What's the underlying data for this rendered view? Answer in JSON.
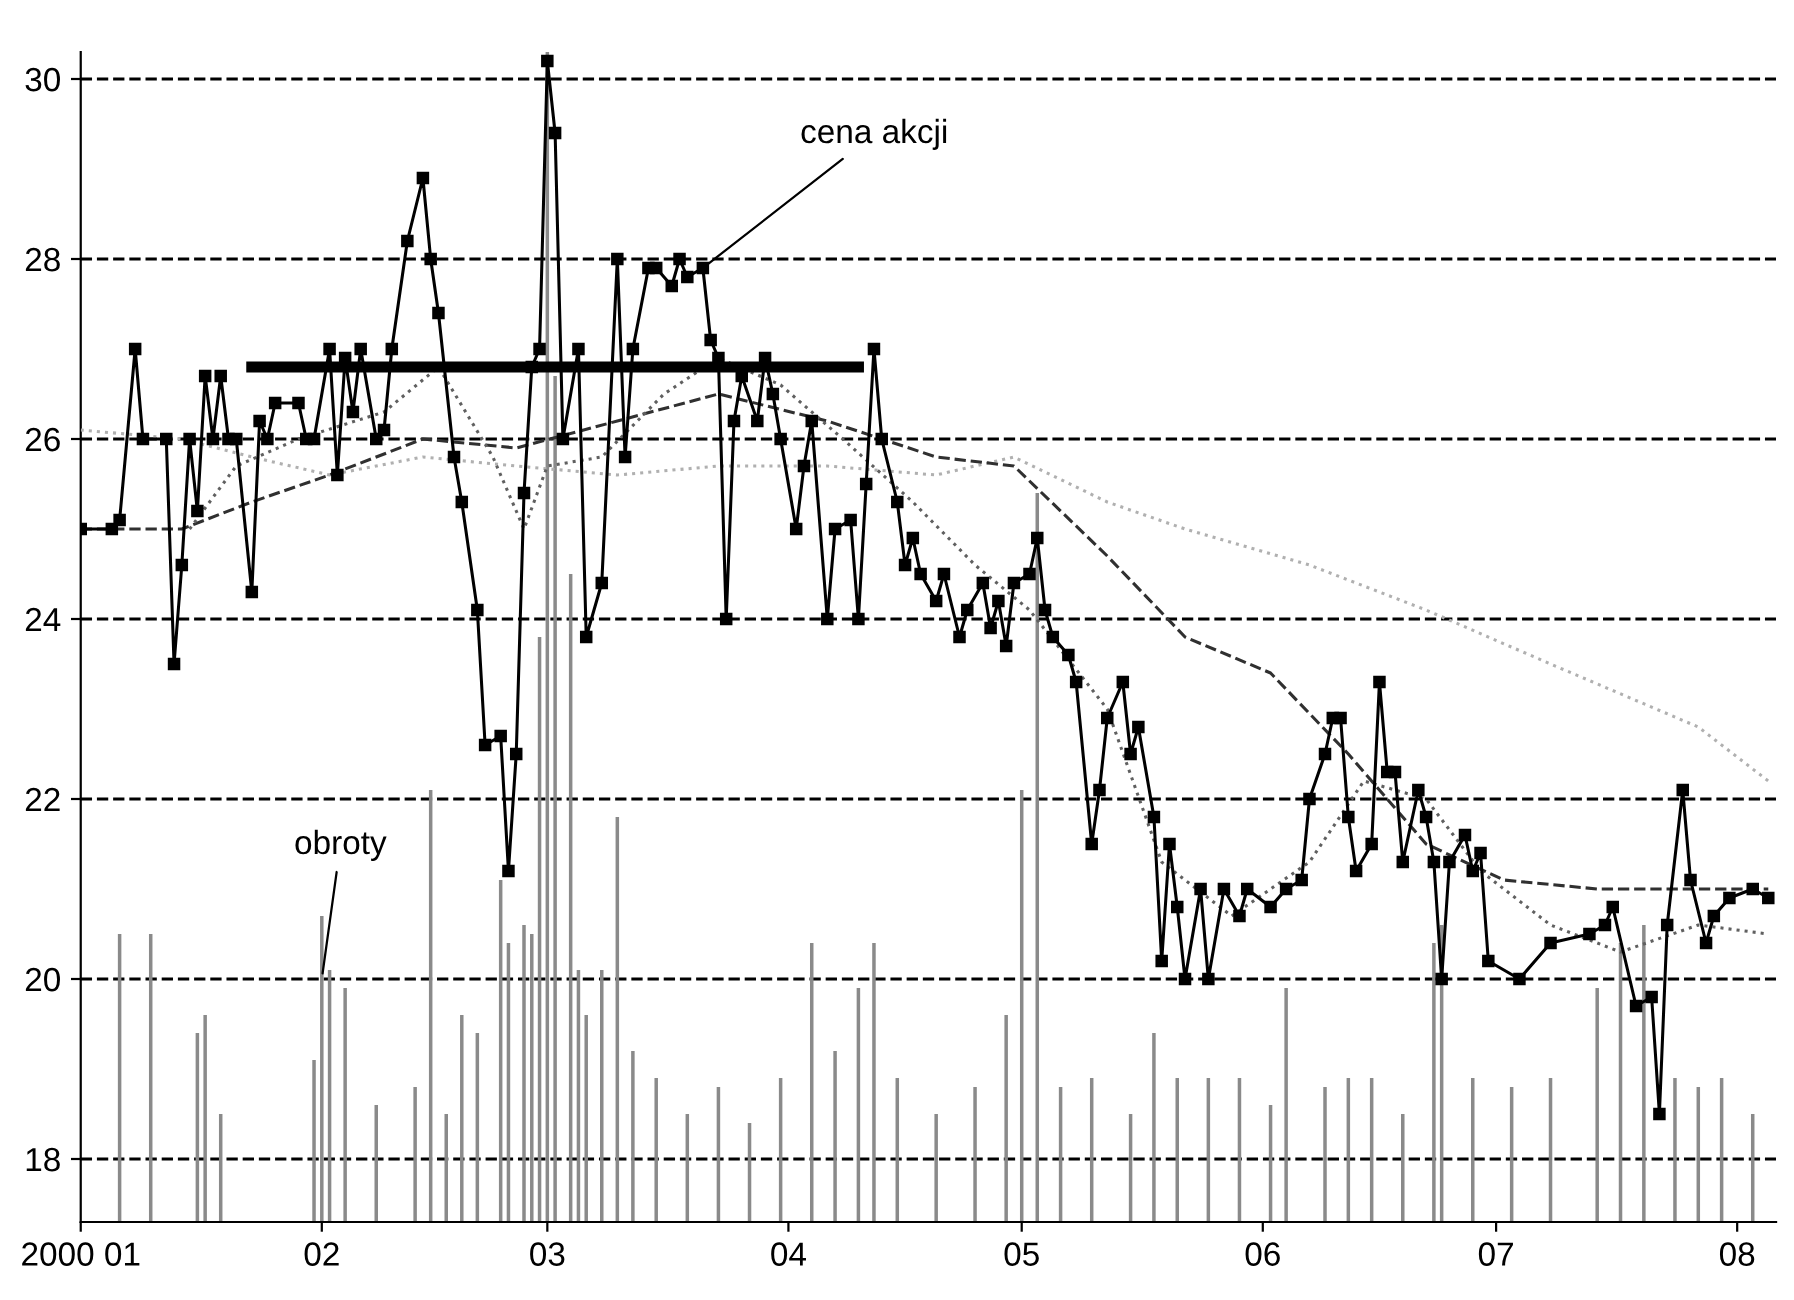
{
  "chart_data": {
    "type": "line",
    "xlim": [
      "2000-01-01",
      "2000-08-06"
    ],
    "ylim": [
      17.3,
      30.3
    ],
    "xticks": [
      {
        "value": "2000-01-01",
        "label": "2000 01"
      },
      {
        "value": "2000-02-01",
        "label": "02"
      },
      {
        "value": "2000-03-01",
        "label": "03"
      },
      {
        "value": "2000-04-01",
        "label": "04"
      },
      {
        "value": "2000-05-01",
        "label": "05"
      },
      {
        "value": "2000-06-01",
        "label": "06"
      },
      {
        "value": "2000-07-01",
        "label": "07"
      },
      {
        "value": "2000-08-01",
        "label": "08"
      }
    ],
    "yticks": [
      18,
      20,
      22,
      24,
      26,
      28,
      30
    ],
    "grid": "y",
    "line_style": "solid",
    "series": [
      {
        "type": "bar",
        "color": "#8a8a8a",
        "x": [
          "2000-01-06",
          "2000-01-10",
          "2000-01-16",
          "2000-01-17",
          "2000-01-19",
          "2000-01-31",
          "2000-02-01",
          "2000-02-02",
          "2000-02-04",
          "2000-02-08",
          "2000-02-13",
          "2000-02-15",
          "2000-02-17",
          "2000-02-19",
          "2000-02-21",
          "2000-02-24",
          "2000-02-25",
          "2000-02-27",
          "2000-02-28",
          "2000-02-29",
          "2000-03-01",
          "2000-03-02",
          "2000-03-04",
          "2000-03-05",
          "2000-03-06",
          "2000-03-08",
          "2000-03-10",
          "2000-03-12",
          "2000-03-15",
          "2000-03-19",
          "2000-03-23",
          "2000-03-27",
          "2000-03-31",
          "2000-04-04",
          "2000-04-07",
          "2000-04-10",
          "2000-04-12",
          "2000-04-15",
          "2000-04-20",
          "2000-04-25",
          "2000-04-29",
          "2000-05-01",
          "2000-05-03",
          "2000-05-06",
          "2000-05-10",
          "2000-05-15",
          "2000-05-18",
          "2000-05-21",
          "2000-05-25",
          "2000-05-29",
          "2000-06-02",
          "2000-06-04",
          "2000-06-09",
          "2000-06-12",
          "2000-06-15",
          "2000-06-19",
          "2000-06-23",
          "2000-06-24",
          "2000-06-28",
          "2000-07-03",
          "2000-07-08",
          "2000-07-14",
          "2000-07-17",
          "2000-07-20",
          "2000-07-24",
          "2000-07-27",
          "2000-07-30",
          "2000-08-03"
        ],
        "values": [
          20.5,
          20.5,
          19.4,
          19.6,
          18.5,
          19.1,
          20.7,
          20.1,
          19.9,
          18.6,
          18.8,
          22.1,
          18.5,
          19.6,
          19.4,
          21.1,
          20.4,
          20.6,
          20.5,
          23.8,
          30.3,
          26.7,
          24.5,
          20.1,
          19.6,
          20.1,
          21.8,
          19.2,
          18.9,
          18.5,
          18.8,
          18.4,
          18.9,
          20.4,
          19.2,
          19.9,
          20.4,
          18.9,
          18.5,
          18.8,
          19.6,
          22.1,
          25.4,
          18.8,
          18.9,
          18.5,
          19.4,
          18.9,
          18.9,
          18.9,
          18.6,
          19.9,
          18.8,
          18.9,
          18.9,
          18.5,
          20.4,
          20.6,
          18.9,
          18.8,
          18.9,
          19.9,
          20.4,
          20.6,
          18.9,
          18.8,
          18.9,
          18.5
        ]
      },
      {
        "color": "#b0b0b0",
        "line_style": "dotted",
        "x": [
          "2000-01-01",
          "2000-01-14",
          "2000-01-23",
          "2000-02-02",
          "2000-02-14",
          "2000-02-26",
          "2000-03-10",
          "2000-03-23",
          "2000-04-06",
          "2000-04-20",
          "2000-04-30",
          "2000-05-12",
          "2000-05-22",
          "2000-06-07",
          "2000-06-22",
          "2000-07-08",
          "2000-07-27",
          "2000-08-05"
        ],
        "values": [
          26.1,
          26.0,
          25.8,
          25.6,
          25.8,
          25.7,
          25.6,
          25.7,
          25.7,
          25.6,
          25.8,
          25.3,
          25.0,
          24.6,
          24.1,
          23.5,
          22.8,
          22.2
        ]
      },
      {
        "color": "#303030",
        "line_style": "dashed",
        "x": [
          "2000-01-01",
          "2000-01-14",
          "2000-01-23",
          "2000-02-02",
          "2000-02-14",
          "2000-02-26",
          "2000-03-10",
          "2000-03-23",
          "2000-04-06",
          "2000-04-20",
          "2000-04-30",
          "2000-05-12",
          "2000-05-22",
          "2000-06-02",
          "2000-06-12",
          "2000-06-22",
          "2000-07-02",
          "2000-07-14",
          "2000-07-27",
          "2000-08-05"
        ],
        "values": [
          25.0,
          25.0,
          25.3,
          25.6,
          26.0,
          25.9,
          26.2,
          26.5,
          26.2,
          25.8,
          25.7,
          24.7,
          23.8,
          23.4,
          22.5,
          21.5,
          21.1,
          21.0,
          21.0,
          21.0
        ]
      },
      {
        "color": "#606060",
        "line_style": "dotted",
        "x": [
          "2000-01-15",
          "2000-01-21",
          "2000-01-29",
          "2000-02-09",
          "2000-02-16",
          "2000-02-23",
          "2000-02-27",
          "2000-03-01",
          "2000-03-08",
          "2000-03-16",
          "2000-03-23",
          "2000-03-31",
          "2000-04-08",
          "2000-04-17",
          "2000-04-25",
          "2000-05-02",
          "2000-05-12",
          "2000-05-19",
          "2000-05-28",
          "2000-06-07",
          "2000-06-14",
          "2000-06-22",
          "2000-06-29",
          "2000-07-08",
          "2000-07-17",
          "2000-07-27",
          "2000-08-05"
        ],
        "values": [
          25.0,
          25.7,
          26.0,
          26.3,
          26.8,
          25.8,
          25.0,
          25.7,
          25.8,
          26.5,
          26.9,
          26.6,
          26.0,
          25.3,
          24.6,
          24.1,
          23.0,
          21.3,
          20.7,
          21.3,
          22.2,
          22.0,
          21.2,
          20.6,
          20.3,
          20.6,
          20.5
        ]
      },
      {
        "color": "#000000",
        "marker": "square",
        "x": [
          "2000-01-01",
          "2000-01-05",
          "2000-01-06",
          "2000-01-08",
          "2000-01-09",
          "2000-01-12",
          "2000-01-13",
          "2000-01-14",
          "2000-01-15",
          "2000-01-16",
          "2000-01-17",
          "2000-01-18",
          "2000-01-19",
          "2000-01-20",
          "2000-01-21",
          "2000-01-23",
          "2000-01-24",
          "2000-01-25",
          "2000-01-26",
          "2000-01-29",
          "2000-01-30",
          "2000-01-31",
          "2000-02-02",
          "2000-02-03",
          "2000-02-04",
          "2000-02-05",
          "2000-02-06",
          "2000-02-08",
          "2000-02-09",
          "2000-02-10",
          "2000-02-12",
          "2000-02-14",
          "2000-02-15",
          "2000-02-16",
          "2000-02-18",
          "2000-02-19",
          "2000-02-21",
          "2000-02-22",
          "2000-02-24",
          "2000-02-25",
          "2000-02-26",
          "2000-02-27",
          "2000-02-28",
          "2000-02-29",
          "2000-03-01",
          "2000-03-02",
          "2000-03-03",
          "2000-03-05",
          "2000-03-06",
          "2000-03-08",
          "2000-03-10",
          "2000-03-11",
          "2000-03-12",
          "2000-03-14",
          "2000-03-15",
          "2000-03-17",
          "2000-03-18",
          "2000-03-19",
          "2000-03-21",
          "2000-03-22",
          "2000-03-23",
          "2000-03-24",
          "2000-03-25",
          "2000-03-26",
          "2000-03-28",
          "2000-03-29",
          "2000-03-30",
          "2000-03-31",
          "2000-04-02",
          "2000-04-03",
          "2000-04-04",
          "2000-04-06",
          "2000-04-07",
          "2000-04-09",
          "2000-04-10",
          "2000-04-11",
          "2000-04-12",
          "2000-04-13",
          "2000-04-15",
          "2000-04-16",
          "2000-04-17",
          "2000-04-18",
          "2000-04-20",
          "2000-04-21",
          "2000-04-23",
          "2000-04-24",
          "2000-04-26",
          "2000-04-27",
          "2000-04-28",
          "2000-04-29",
          "2000-04-30",
          "2000-05-02",
          "2000-05-03",
          "2000-05-04",
          "2000-05-05",
          "2000-05-07",
          "2000-05-08",
          "2000-05-10",
          "2000-05-11",
          "2000-05-12",
          "2000-05-14",
          "2000-05-15",
          "2000-05-16",
          "2000-05-18",
          "2000-05-19",
          "2000-05-20",
          "2000-05-21",
          "2000-05-22",
          "2000-05-24",
          "2000-05-25",
          "2000-05-27",
          "2000-05-29",
          "2000-05-30",
          "2000-06-02",
          "2000-06-04",
          "2000-06-06",
          "2000-06-07",
          "2000-06-09",
          "2000-06-10",
          "2000-06-11",
          "2000-06-12",
          "2000-06-13",
          "2000-06-15",
          "2000-06-16",
          "2000-06-17",
          "2000-06-18",
          "2000-06-19",
          "2000-06-21",
          "2000-06-22",
          "2000-06-23",
          "2000-06-24",
          "2000-06-25",
          "2000-06-27",
          "2000-06-28",
          "2000-06-29",
          "2000-06-30",
          "2000-07-04",
          "2000-07-08",
          "2000-07-13",
          "2000-07-15",
          "2000-07-16",
          "2000-07-19",
          "2000-07-21",
          "2000-07-22",
          "2000-07-23",
          "2000-07-25",
          "2000-07-26",
          "2000-07-28",
          "2000-07-29",
          "2000-07-31",
          "2000-08-03",
          "2000-08-05"
        ],
        "values": [
          25.0,
          25.0,
          25.1,
          27.0,
          26.0,
          26.0,
          23.5,
          24.6,
          26.0,
          25.2,
          26.7,
          26.0,
          26.7,
          26.0,
          26.0,
          24.3,
          26.2,
          26.0,
          26.4,
          26.4,
          26.0,
          26.0,
          27.0,
          25.6,
          26.9,
          26.3,
          27.0,
          26.0,
          26.1,
          27.0,
          28.2,
          28.9,
          28.0,
          27.4,
          25.8,
          25.3,
          24.1,
          22.6,
          22.7,
          21.2,
          22.5,
          25.4,
          26.8,
          27.0,
          30.2,
          29.4,
          26.0,
          27.0,
          23.8,
          24.4,
          28.0,
          25.8,
          27.0,
          27.9,
          27.9,
          27.7,
          28.0,
          27.8,
          27.9,
          27.1,
          26.9,
          24.0,
          26.2,
          26.7,
          26.2,
          26.9,
          26.5,
          26.0,
          25.0,
          25.7,
          26.2,
          24.0,
          25.0,
          25.1,
          24.0,
          25.5,
          27.0,
          26.0,
          25.3,
          24.6,
          24.9,
          24.5,
          24.2,
          24.5,
          23.8,
          24.1,
          24.4,
          23.9,
          24.2,
          23.7,
          24.4,
          24.5,
          24.9,
          24.1,
          23.8,
          23.6,
          23.3,
          21.5,
          22.1,
          22.9,
          23.3,
          22.5,
          22.8,
          21.8,
          20.2,
          21.5,
          20.8,
          20.0,
          21.0,
          20.0,
          21.0,
          20.7,
          21.0,
          20.8,
          21.0,
          21.1,
          22.0,
          22.5,
          22.9,
          22.9,
          21.8,
          21.2,
          21.5,
          23.3,
          22.3,
          22.3,
          21.3,
          22.1,
          21.8,
          21.3,
          20.0,
          21.3,
          21.6,
          21.2,
          21.4,
          20.2,
          20.0,
          20.4,
          20.5,
          20.6,
          20.8,
          19.7,
          19.8,
          18.5,
          20.6,
          22.1,
          21.1,
          20.4,
          20.7,
          20.9,
          21.0,
          20.9
        ]
      },
      {
        "color": "#000000",
        "x": [
          "2000-01-23",
          "2000-04-10"
        ],
        "values": [
          26.8,
          26.8
        ]
      }
    ],
    "annotations": [
      {
        "text": "cena akcji",
        "x": "2000-03-21",
        "y": 27.9
      },
      {
        "text": "obroty",
        "x": "2000-02-01",
        "y": 20.0
      }
    ]
  }
}
